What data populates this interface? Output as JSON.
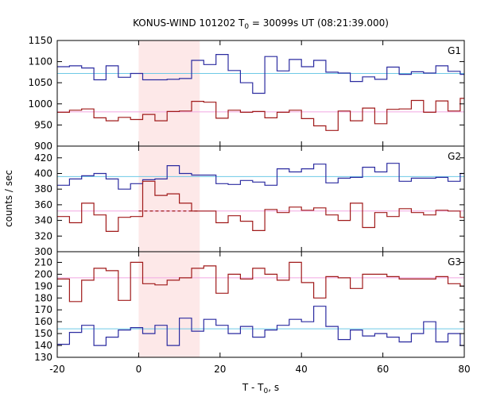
{
  "chart_data": {
    "type": "line",
    "title": "KONUS-WIND 101202 T",
    "title_sub": "0",
    "title_rest": " = 30099s UT (08:21:39.000)",
    "xlabel": "T - T",
    "xlabel_sub": "0",
    "xlabel_rest": ", s",
    "ylabel": "counts / sec",
    "xlim": [
      -20,
      80
    ],
    "x_ticks": [
      -20,
      0,
      20,
      40,
      60,
      80
    ],
    "shaded_interval": [
      0,
      15
    ],
    "colors": {
      "blue": "#2b2ba0",
      "red": "#a01a1a",
      "cyan": "#6ec9e6",
      "pink": "#f2a8e2",
      "shade": "#fde8e8"
    },
    "bin_edges": [
      -20,
      -17,
      -14,
      -11,
      -8,
      -5,
      -2,
      1,
      4,
      7,
      10,
      13,
      16,
      19,
      22,
      25,
      28,
      31,
      34,
      37,
      40,
      43,
      46,
      49,
      52,
      55,
      58,
      61,
      64,
      67,
      70,
      73,
      76,
      79,
      82
    ],
    "panels": [
      {
        "label": "G1",
        "ylim": [
          900,
          1150
        ],
        "y_ticks": [
          900,
          950,
          1000,
          1050,
          1100,
          1150
        ],
        "series": [
          {
            "color": "blue",
            "values": [
              1088,
              1090,
              1085,
              1057,
              1090,
              1063,
              1072,
              1057,
              1057,
              1058,
              1060,
              1103,
              1093,
              1117,
              1079,
              1050,
              1025,
              1112,
              1078,
              1105,
              1088,
              1103,
              1075,
              1073,
              1053,
              1064,
              1058,
              1087,
              1070,
              1076,
              1073,
              1090,
              1077,
              1070
            ],
            "background": 1072,
            "background_color": "cyan"
          },
          {
            "color": "red",
            "values": [
              980,
              985,
              988,
              967,
              960,
              968,
              963,
              975,
              960,
              982,
              983,
              1006,
              1004,
              966,
              985,
              980,
              982,
              967,
              980,
              985,
              965,
              948,
              937,
              983,
              960,
              990,
              953,
              987,
              988,
              1008,
              980,
              1007,
              983,
              1013
            ],
            "background": 981,
            "background_color": "pink"
          }
        ]
      },
      {
        "label": "G2",
        "ylim": [
          300,
          435
        ],
        "y_ticks": [
          300,
          320,
          340,
          360,
          380,
          400,
          420
        ],
        "series": [
          {
            "color": "blue",
            "values": [
              385,
              393,
              397,
              400,
              393,
              380,
              387,
              392,
              393,
              410,
              400,
              398,
              398,
              387,
              386,
              391,
              389,
              385,
              406,
              402,
              406,
              412,
              388,
              394,
              395,
              408,
              402,
              413,
              390,
              394,
              394,
              395,
              390,
              400
            ],
            "background": 396,
            "background_color": "cyan"
          },
          {
            "color": "red",
            "values": [
              345,
              337,
              362,
              347,
              326,
              344,
              345,
              390,
              372,
              374,
              362,
              352,
              352,
              337,
              346,
              339,
              327,
              354,
              350,
              357,
              353,
              356,
              347,
              340,
              362,
              331,
              350,
              345,
              355,
              350,
              347,
              353,
              352,
              344
            ],
            "background": 352,
            "background_color": "pink"
          }
        ]
      },
      {
        "label": "G3",
        "ylim": [
          130,
          219
        ],
        "y_ticks": [
          130,
          140,
          150,
          160,
          170,
          180,
          190,
          200,
          210
        ],
        "series": [
          {
            "color": "blue",
            "values": [
              141,
              151,
              157,
              140,
              147,
              153,
              155,
              150,
              157,
              140,
              163,
              152,
              162,
              157,
              150,
              156,
              147,
              153,
              157,
              162,
              160,
              173,
              156,
              145,
              153,
              148,
              150,
              147,
              143,
              150,
              160,
              143,
              150,
              140
            ],
            "background": 154,
            "background_color": "cyan"
          },
          {
            "color": "red",
            "values": [
              196,
              177,
              195,
              205,
              203,
              178,
              210,
              192,
              191,
              195,
              197,
              205,
              207,
              184,
              200,
              196,
              205,
              200,
              195,
              210,
              193,
              180,
              198,
              197,
              188,
              200,
              200,
              198,
              196,
              196,
              196,
              198,
              192,
              190
            ],
            "background": 197,
            "background_color": "pink"
          }
        ]
      }
    ]
  }
}
